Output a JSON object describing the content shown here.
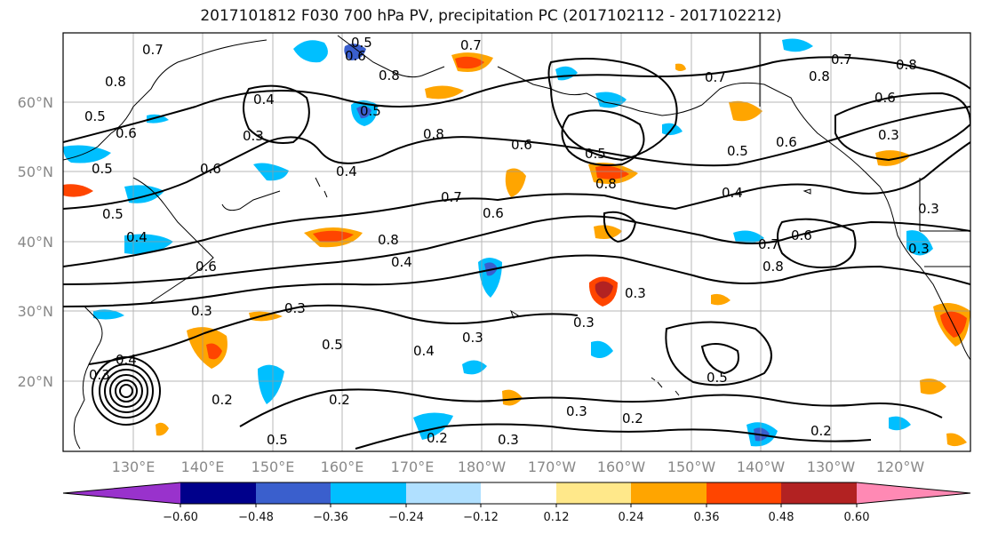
{
  "title": "2017101812 F030 700 hPa PV, precipitation PC (2017102112 - 2017102212)",
  "map": {
    "lat_labels": [
      "60°N",
      "50°N",
      "40°N",
      "30°N",
      "20°N"
    ],
    "lon_labels": [
      "130°E",
      "140°E",
      "150°E",
      "160°E",
      "170°E",
      "180°W",
      "170°W",
      "160°W",
      "150°W",
      "140°W",
      "130°W",
      "120°W"
    ],
    "contour_labels": [
      "0.7",
      "0.5",
      "0.6",
      "0.8",
      "0.7",
      "0.8",
      "0.5",
      "0.6",
      "0.4",
      "0.3",
      "0.5",
      "0.8",
      "0.4",
      "0.7",
      "0.6",
      "0.5",
      "0.6",
      "0.3",
      "0.4",
      "0.5",
      "0.8",
      "0.4",
      "0.6",
      "0.8",
      "0.7",
      "0.6",
      "0.4",
      "0.7",
      "0.6",
      "0.8",
      "0.3",
      "0.3",
      "0.5",
      "0.4",
      "0.3",
      "0.3",
      "0.2",
      "0.3",
      "0.4",
      "0.2",
      "0.5",
      "0.2",
      "0.3",
      "0.2",
      "0.3",
      "0.3",
      "0.5",
      "0.2",
      "0.3",
      "0.6",
      "0.8",
      "0.5",
      "0.7",
      "0.8",
      "0.6",
      "0.5",
      "0.3"
    ],
    "colors": {
      "contour": "#000000",
      "grid": "#999999",
      "coast": "#000000"
    }
  },
  "colorbar": {
    "tick_labels": [
      "−0.60",
      "−0.48",
      "−0.36",
      "−0.24",
      "−0.12",
      "0.12",
      "0.24",
      "0.36",
      "0.48",
      "0.60"
    ],
    "colors": [
      "#9932cc",
      "#00008b",
      "#3a5fcd",
      "#00bfff",
      "#b0e0ff",
      "#ffffff",
      "#ffe88a",
      "#ffa500",
      "#ff4500",
      "#b22222",
      "#ff89b4"
    ]
  }
}
